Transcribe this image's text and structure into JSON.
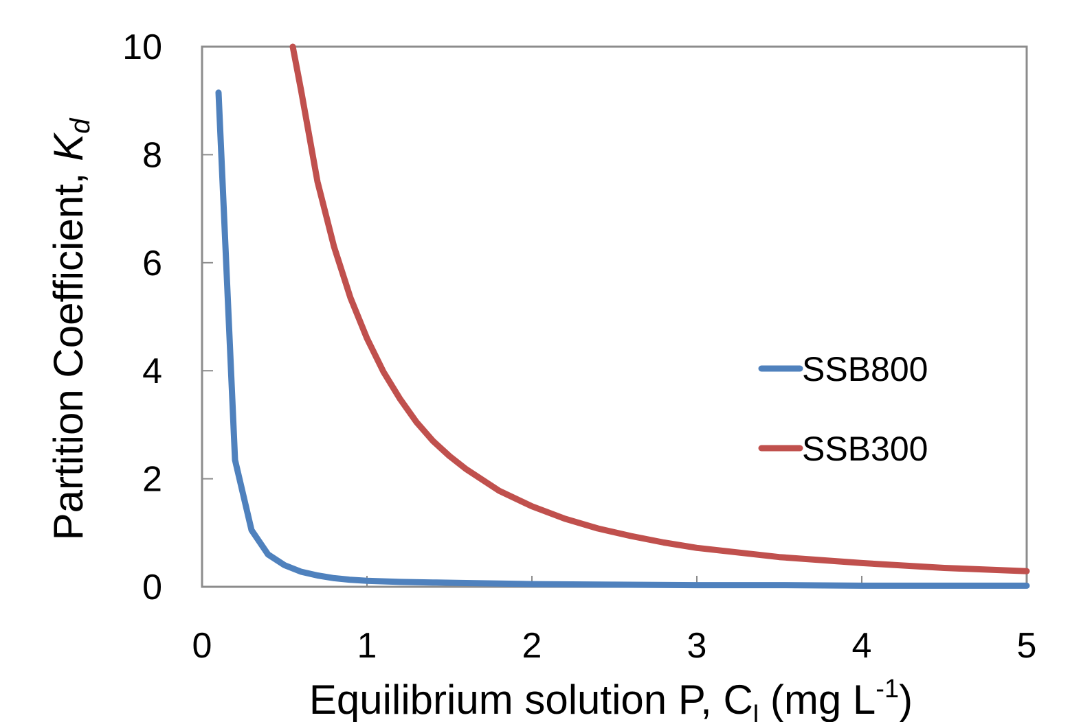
{
  "chart_data": {
    "type": "line",
    "title": "",
    "xlabel": {
      "main": "Equilibrium solution P, C",
      "sub": "l",
      "unit_open": " (mg L",
      "sup": "-1",
      "unit_close": ")"
    },
    "ylabel": {
      "main": "Partition Coefficient, ",
      "italic": "K",
      "sub": "d"
    },
    "xlim": [
      0,
      5
    ],
    "ylim": [
      0,
      10
    ],
    "xticks": [
      0,
      1,
      2,
      3,
      4,
      5
    ],
    "yticks": [
      0,
      2,
      4,
      6,
      8,
      10
    ],
    "grid": false,
    "legend_position": "right",
    "series": [
      {
        "name": "SSB800",
        "color": "#4f81bd",
        "x": [
          0.1,
          0.2,
          0.3,
          0.4,
          0.5,
          0.6,
          0.7,
          0.8,
          0.9,
          1.0,
          1.2,
          1.4,
          1.6,
          1.8,
          2.0,
          2.5,
          3.0,
          3.5,
          4.0,
          4.5,
          5.0
        ],
        "y": [
          9.15,
          2.35,
          1.05,
          0.6,
          0.4,
          0.28,
          0.21,
          0.16,
          0.13,
          0.11,
          0.09,
          0.08,
          0.07,
          0.06,
          0.05,
          0.04,
          0.03,
          0.03,
          0.02,
          0.02,
          0.02
        ]
      },
      {
        "name": "SSB300",
        "color": "#c0504d",
        "x": [
          0.55,
          0.6,
          0.7,
          0.8,
          0.9,
          1.0,
          1.1,
          1.2,
          1.3,
          1.4,
          1.5,
          1.6,
          1.8,
          2.0,
          2.2,
          2.4,
          2.6,
          2.8,
          3.0,
          3.5,
          4.0,
          4.5,
          5.0
        ],
        "y": [
          10.0,
          9.2,
          7.5,
          6.3,
          5.35,
          4.6,
          3.98,
          3.48,
          3.05,
          2.7,
          2.42,
          2.18,
          1.78,
          1.49,
          1.26,
          1.08,
          0.94,
          0.82,
          0.72,
          0.55,
          0.44,
          0.35,
          0.29
        ]
      }
    ]
  }
}
